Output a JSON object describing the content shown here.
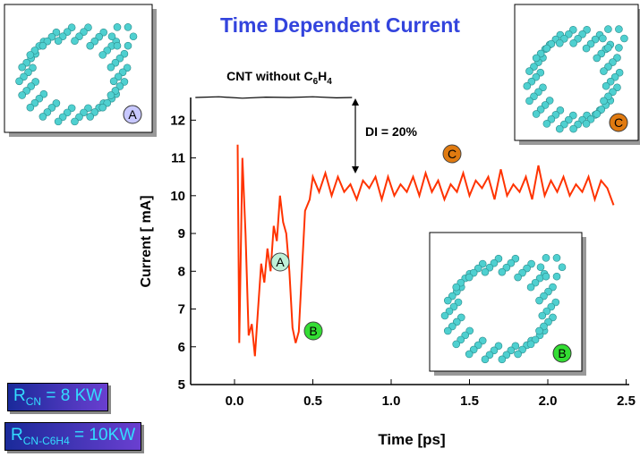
{
  "chart_data": {
    "type": "line",
    "title": "Time Dependent Current",
    "xlabel": "Time [ps]",
    "ylabel": "Current [ mA]",
    "xlim": [
      -0.28,
      2.52
    ],
    "ylim": [
      5,
      12.6
    ],
    "xticks": [
      {
        "value": 0,
        "label": "0.0"
      },
      0.5,
      {
        "value": 1,
        "label": "1.0"
      },
      1.5,
      {
        "value": 2,
        "label": "2.0"
      },
      2.5
    ],
    "yticks": [
      5,
      6,
      7,
      8,
      9,
      10,
      11,
      12
    ],
    "series": [
      {
        "color": "#ff3300",
        "x": [
          0.02,
          0.03,
          0.05,
          0.07,
          0.09,
          0.11,
          0.13,
          0.15,
          0.17,
          0.19,
          0.21,
          0.23,
          0.25,
          0.27,
          0.29,
          0.31,
          0.33,
          0.35,
          0.37,
          0.39,
          0.41,
          0.43,
          0.45,
          0.48,
          0.5,
          0.54,
          0.58,
          0.62,
          0.66,
          0.7,
          0.74,
          0.78,
          0.82,
          0.86,
          0.9,
          0.94,
          0.98,
          1.02,
          1.06,
          1.1,
          1.14,
          1.18,
          1.22,
          1.26,
          1.3,
          1.34,
          1.38,
          1.42,
          1.46,
          1.5,
          1.54,
          1.58,
          1.62,
          1.66,
          1.7,
          1.74,
          1.78,
          1.82,
          1.86,
          1.9,
          1.94,
          1.98,
          2.02,
          2.06,
          2.1,
          2.14,
          2.18,
          2.22,
          2.26,
          2.3,
          2.34,
          2.38,
          2.42
        ],
        "values": [
          11.35,
          6.1,
          11.0,
          9.0,
          6.3,
          6.6,
          5.75,
          7.0,
          8.2,
          7.7,
          8.6,
          8.0,
          9.2,
          8.8,
          10.0,
          9.3,
          9.0,
          8.0,
          6.5,
          6.1,
          6.4,
          8.0,
          9.6,
          9.9,
          10.5,
          10.1,
          10.6,
          10.0,
          10.5,
          10.1,
          10.3,
          9.9,
          10.4,
          10.2,
          10.5,
          9.9,
          10.5,
          10.0,
          10.3,
          10.1,
          10.5,
          10.0,
          10.6,
          10.1,
          10.4,
          9.9,
          10.3,
          10.1,
          10.6,
          10.0,
          10.4,
          10.2,
          10.5,
          9.9,
          10.7,
          10.0,
          10.3,
          10.1,
          10.5,
          9.9,
          10.8,
          10.0,
          10.4,
          10.1,
          10.5,
          10.0,
          10.3,
          10.1,
          10.5,
          9.9,
          10.4,
          10.2,
          9.75
        ]
      },
      {
        "color": "#000000",
        "x": [
          -0.25,
          -0.1,
          0.05,
          0.2,
          0.35,
          0.5,
          0.65,
          0.75
        ],
        "values": [
          12.6,
          12.62,
          12.58,
          12.61,
          12.6,
          12.62,
          12.59,
          12.6
        ]
      }
    ],
    "reference_label": [
      "CNT without C",
      "6",
      "H",
      "4"
    ],
    "difference_label": "DI = 20%",
    "markers": [
      "A",
      "B",
      "C"
    ]
  },
  "insets": [
    "A",
    "C",
    "B"
  ],
  "resistances": [
    {
      "symbol": "R",
      "subscript": "CN",
      "text": " = 8 KW"
    },
    {
      "symbol": "R",
      "subscript": "CN-C6H4",
      "text": " = 10KW"
    }
  ]
}
